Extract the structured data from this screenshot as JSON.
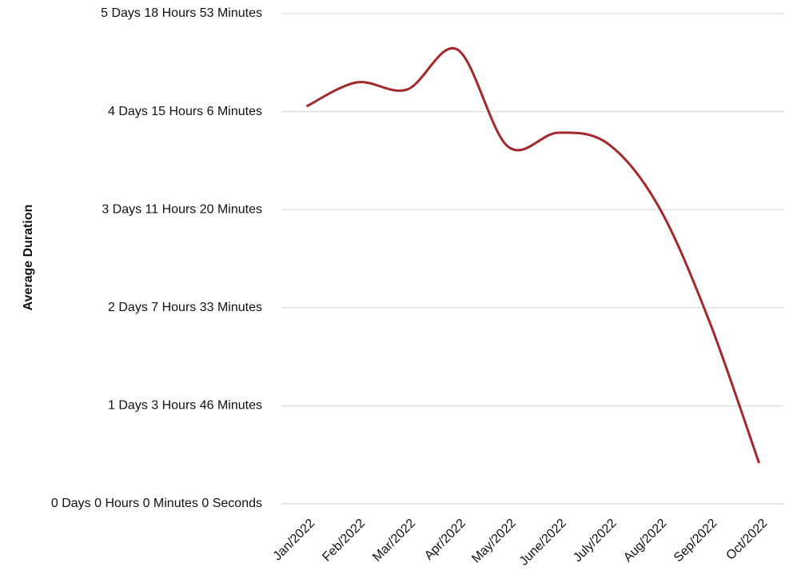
{
  "chart_data": {
    "type": "line",
    "y_label": "Average Duration",
    "categories": [
      "Jan/2022",
      "Feb/2022",
      "Mar/2022",
      "Apr/2022",
      "May/2022",
      "June/2022",
      "July/2022",
      "Aug/2022",
      "Sep/2022",
      "Oct/2022"
    ],
    "series": [
      {
        "name": "Average Duration",
        "color": "#a3282b",
        "values": [
          6756,
          7164,
          7042,
          7722,
          6077,
          6308,
          6117,
          5057,
          3127,
          693
        ]
      }
    ],
    "ylim": [
      0,
      8333
    ],
    "yticks": [
      {
        "value": 0,
        "label": "0 Days 0 Hours 0 Minutes 0 Seconds"
      },
      {
        "value": 1666,
        "label": "1 Days 3 Hours 46 Minutes"
      },
      {
        "value": 3333,
        "label": "2 Days 7 Hours 33 Minutes"
      },
      {
        "value": 5000,
        "label": "3 Days 11 Hours 20 Minutes"
      },
      {
        "value": 6666,
        "label": "4 Days 15 Hours 6 Minutes"
      },
      {
        "value": 8333,
        "label": "5 Days 18 Hours 53 Minutes"
      }
    ],
    "grid": true
  }
}
